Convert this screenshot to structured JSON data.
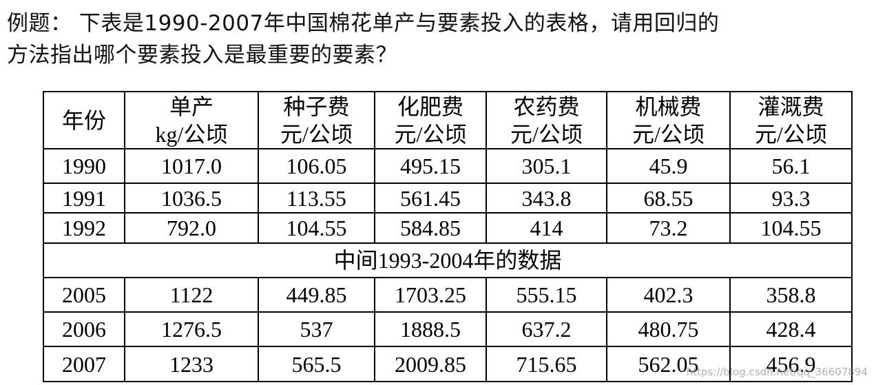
{
  "question": {
    "lines": [
      "例题：  下表是1990-2007年中国棉花单产与要素投入的表格，请用回归的",
      "方法指出哪个要素投入是最重要的要素？"
    ]
  },
  "table": {
    "header": [
      [
        "年份"
      ],
      [
        "单产",
        "kg/公顷"
      ],
      [
        "种子费",
        "元/公顷"
      ],
      [
        "化肥费",
        "元/公顷"
      ],
      [
        "农药费",
        "元/公顷"
      ],
      [
        "机械费",
        "元/公顷"
      ],
      [
        "灌溉费",
        "元/公顷"
      ]
    ],
    "rows_before": [
      [
        "1990",
        "1017.0",
        "106.05",
        "495.15",
        "305.1",
        "45.9",
        "56.1"
      ],
      [
        "1991",
        "1036.5",
        "113.55",
        "561.45",
        "343.8",
        "68.55",
        "93.3"
      ],
      [
        "1992",
        "792.0",
        "104.55",
        "584.85",
        "414",
        "73.2",
        "104.55"
      ]
    ],
    "gap_note": "中间1993-2004年的数据",
    "rows_after": [
      [
        "2005",
        "1122",
        "449.85",
        "1703.25",
        "555.15",
        "402.3",
        "358.8"
      ],
      [
        "2006",
        "1276.5",
        "537",
        "1888.5",
        "637.2",
        "480.75",
        "428.4"
      ],
      [
        "2007",
        "1233",
        "565.5",
        "2009.85",
        "715.65",
        "562.05",
        "456.9"
      ]
    ]
  },
  "watermark": "https://blog.csdn.net/qq_36607894"
}
